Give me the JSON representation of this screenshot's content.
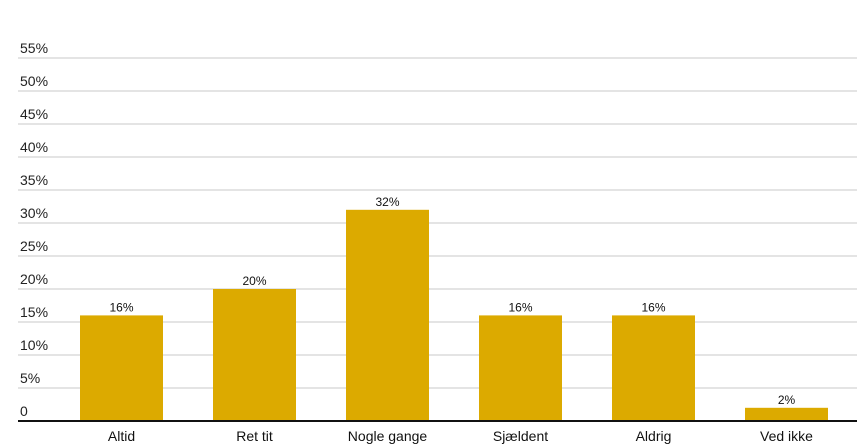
{
  "chart_data": {
    "type": "bar",
    "categories": [
      "Altid",
      "Ret tit",
      "Nogle gange",
      "Sjældent",
      "Aldrig",
      "Ved ikke"
    ],
    "values": [
      16,
      20,
      32,
      16,
      16,
      2
    ],
    "data_labels": [
      "16%",
      "20%",
      "32%",
      "16%",
      "16%",
      "2%"
    ],
    "yticks": [
      0,
      5,
      10,
      15,
      20,
      25,
      30,
      35,
      40,
      45,
      50,
      55
    ],
    "ytick_labels": [
      "0",
      "5%",
      "10%",
      "15%",
      "20%",
      "25%",
      "30%",
      "35%",
      "40%",
      "45%",
      "50%",
      "55%"
    ],
    "ylim": [
      0,
      60
    ],
    "title": "",
    "xlabel": "",
    "ylabel": "",
    "grid": true,
    "colors": {
      "bar": "#dcaa00",
      "grid": "#c8c8c8",
      "axis": "#111111"
    }
  }
}
